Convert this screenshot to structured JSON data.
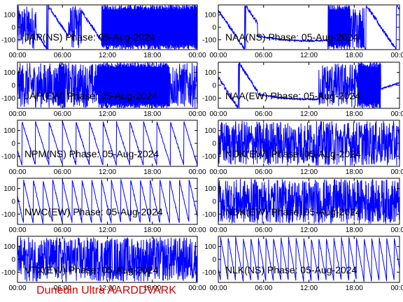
{
  "footer": "Dunedin Ultra AARDDVARK",
  "colors": {
    "trace": "#0000ff",
    "axis": "#000000",
    "footer": "#d40000"
  },
  "chart_data": {
    "type": "line",
    "ylim": [
      -180,
      180
    ],
    "xlim_hours": [
      0,
      24
    ],
    "xticks": [
      "00:00",
      "06:00",
      "12:00",
      "18:00",
      "00:00"
    ],
    "yticks": [
      100,
      0,
      -100
    ],
    "grid": false,
    "panels": [
      {
        "title": "JAP(NS) Phase: 05-Aug-2024",
        "style": "mixed",
        "segments": [
          [
            "noise",
            0,
            2.5
          ],
          [
            "slope",
            2.5,
            6.8
          ],
          [
            "noise",
            6.8,
            8.6
          ],
          [
            "slope",
            8.6,
            11.2
          ],
          [
            "dense",
            11.2,
            24
          ]
        ]
      },
      {
        "title": "NAA(NS) Phase: 05-Aug-2024",
        "style": "mixed",
        "segments": [
          [
            "slope",
            0,
            5.2
          ],
          [
            "curve",
            5.2,
            14.5
          ],
          [
            "dense",
            14.5,
            17.5
          ],
          [
            "noise",
            17.5,
            19.3
          ],
          [
            "slope",
            19.3,
            24
          ]
        ]
      },
      {
        "title": "JAP(EW) Phase: 05-Aug-2024",
        "style": "mixed",
        "segments": [
          [
            "noise",
            0,
            5.5
          ],
          [
            "dense",
            5.5,
            6.3
          ],
          [
            "noise",
            6.3,
            10.8
          ],
          [
            "dense",
            10.8,
            20.3
          ],
          [
            "noise",
            20.3,
            24
          ]
        ]
      },
      {
        "title": "NAA(EW) Phase: 05-Aug-2024",
        "style": "mixed",
        "segments": [
          [
            "slope",
            0,
            5.2
          ],
          [
            "curve",
            5.2,
            13.3
          ],
          [
            "noise",
            13.3,
            18.5
          ],
          [
            "dense",
            18.5,
            21.5
          ],
          [
            "curve",
            21.5,
            24
          ]
        ]
      },
      {
        "title": "NPM(NS) Phase: 05-Aug-2024",
        "style": "wraps",
        "period": 1.8
      },
      {
        "title": "NDK(EW) Phase: 05-Aug-2024",
        "style": "noise"
      },
      {
        "title": "NWC(EW) Phase: 05-Aug-2024",
        "style": "wraps",
        "period": 1.3
      },
      {
        "title": "NDK(EW) Phase: 05-Aug-2024",
        "style": "noise"
      },
      {
        "title": "VTX(EW) Phase: 05-Aug-2024",
        "style": "noise"
      },
      {
        "title": "NLK(NS) Phase: 05-Aug-2024",
        "style": "wraps",
        "period": 1.0
      }
    ]
  }
}
